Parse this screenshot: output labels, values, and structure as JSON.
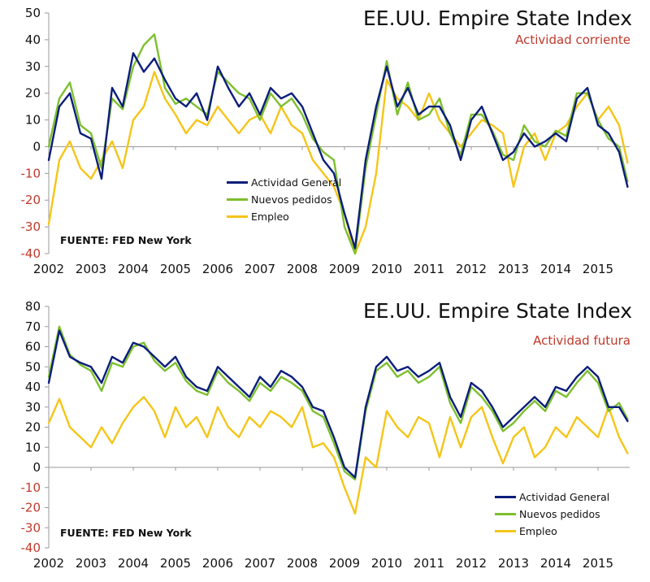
{
  "chart_data": [
    {
      "type": "line",
      "title": "EE.UU. Empire State Index",
      "subtitle": "Actividad corriente",
      "source": "FUENTE: FED New York",
      "xlabel": "",
      "ylabel": "",
      "ylim": [
        -40,
        50
      ],
      "yticks": [
        50,
        40,
        30,
        20,
        10,
        0,
        -10,
        -20,
        -30,
        -40
      ],
      "xlim": [
        2002,
        2015.75
      ],
      "xticks": [
        2002,
        2003,
        2004,
        2005,
        2006,
        2007,
        2008,
        2009,
        2010,
        2011,
        2012,
        2013,
        2014,
        2015
      ],
      "legend_placement": "bottom-left",
      "grid": false,
      "series": [
        {
          "name": "Actividad General",
          "color": "#0b1e7a",
          "x": [
            2002.0,
            2002.25,
            2002.5,
            2002.75,
            2003.0,
            2003.25,
            2003.5,
            2003.75,
            2004.0,
            2004.25,
            2004.5,
            2004.75,
            2005.0,
            2005.25,
            2005.5,
            2005.75,
            2006.0,
            2006.25,
            2006.5,
            2006.75,
            2007.0,
            2007.25,
            2007.5,
            2007.75,
            2008.0,
            2008.25,
            2008.5,
            2008.75,
            2009.0,
            2009.25,
            2009.5,
            2009.75,
            2010.0,
            2010.25,
            2010.5,
            2010.75,
            2011.0,
            2011.25,
            2011.5,
            2011.75,
            2012.0,
            2012.25,
            2012.5,
            2012.75,
            2013.0,
            2013.25,
            2013.5,
            2013.75,
            2014.0,
            2014.25,
            2014.5,
            2014.75,
            2015.0,
            2015.25,
            2015.5,
            2015.7
          ],
          "values": [
            -5,
            15,
            20,
            5,
            3,
            -12,
            22,
            15,
            35,
            28,
            33,
            25,
            18,
            15,
            20,
            10,
            30,
            22,
            15,
            20,
            12,
            22,
            18,
            20,
            15,
            5,
            -5,
            -10,
            -25,
            -38,
            -5,
            15,
            30,
            15,
            22,
            12,
            15,
            15,
            8,
            -5,
            10,
            15,
            5,
            -5,
            -2,
            5,
            0,
            2,
            5,
            2,
            18,
            22,
            8,
            5,
            -2,
            -15
          ]
        },
        {
          "name": "Nuevos pedidos",
          "color": "#7dbf2e",
          "x": [
            2002.0,
            2002.25,
            2002.5,
            2002.75,
            2003.0,
            2003.25,
            2003.5,
            2003.75,
            2004.0,
            2004.25,
            2004.5,
            2004.75,
            2005.0,
            2005.25,
            2005.5,
            2005.75,
            2006.0,
            2006.25,
            2006.5,
            2006.75,
            2007.0,
            2007.25,
            2007.5,
            2007.75,
            2008.0,
            2008.25,
            2008.5,
            2008.75,
            2009.0,
            2009.25,
            2009.5,
            2009.75,
            2010.0,
            2010.25,
            2010.5,
            2010.75,
            2011.0,
            2011.25,
            2011.5,
            2011.75,
            2012.0,
            2012.25,
            2012.5,
            2012.75,
            2013.0,
            2013.25,
            2013.5,
            2013.75,
            2014.0,
            2014.25,
            2014.5,
            2014.75,
            2015.0,
            2015.25,
            2015.5,
            2015.7
          ],
          "values": [
            0,
            18,
            24,
            8,
            5,
            -8,
            18,
            14,
            30,
            38,
            42,
            22,
            16,
            18,
            15,
            12,
            28,
            24,
            20,
            18,
            10,
            20,
            15,
            18,
            12,
            3,
            -2,
            -5,
            -30,
            -40,
            -8,
            12,
            32,
            12,
            24,
            10,
            12,
            18,
            5,
            -3,
            12,
            12,
            6,
            -3,
            -5,
            8,
            2,
            0,
            6,
            4,
            20,
            20,
            10,
            3,
            0,
            -13
          ]
        },
        {
          "name": "Empleo",
          "color": "#f5c518",
          "x": [
            2002.0,
            2002.25,
            2002.5,
            2002.75,
            2003.0,
            2003.25,
            2003.5,
            2003.75,
            2004.0,
            2004.25,
            2004.5,
            2004.75,
            2005.0,
            2005.25,
            2005.5,
            2005.75,
            2006.0,
            2006.25,
            2006.5,
            2006.75,
            2007.0,
            2007.25,
            2007.5,
            2007.75,
            2008.0,
            2008.25,
            2008.5,
            2008.75,
            2009.0,
            2009.25,
            2009.5,
            2009.75,
            2010.0,
            2010.25,
            2010.5,
            2010.75,
            2011.0,
            2011.25,
            2011.5,
            2011.75,
            2012.0,
            2012.25,
            2012.5,
            2012.75,
            2013.0,
            2013.25,
            2013.5,
            2013.75,
            2014.0,
            2014.25,
            2014.5,
            2014.75,
            2015.0,
            2015.25,
            2015.5,
            2015.7
          ],
          "values": [
            -29,
            -5,
            2,
            -8,
            -12,
            -5,
            2,
            -8,
            10,
            15,
            28,
            18,
            12,
            5,
            10,
            8,
            15,
            10,
            5,
            10,
            12,
            5,
            15,
            8,
            5,
            -5,
            -10,
            -15,
            -25,
            -40,
            -30,
            -10,
            25,
            18,
            15,
            10,
            20,
            10,
            5,
            0,
            5,
            10,
            8,
            5,
            -15,
            0,
            5,
            -5,
            5,
            8,
            15,
            20,
            10,
            15,
            8,
            -6
          ]
        }
      ]
    },
    {
      "type": "line",
      "title": "EE.UU. Empire State Index",
      "subtitle": "Actividad futura",
      "source": "FUENTE: FED New York",
      "xlabel": "",
      "ylabel": "",
      "ylim": [
        -40,
        80
      ],
      "yticks": [
        80,
        70,
        60,
        50,
        40,
        30,
        20,
        10,
        0,
        -10,
        -20,
        -30,
        -40
      ],
      "xlim": [
        2002,
        2015.75
      ],
      "xticks": [
        2002,
        2003,
        2004,
        2005,
        2006,
        2007,
        2008,
        2009,
        2010,
        2011,
        2012,
        2013,
        2014,
        2015
      ],
      "legend_placement": "bottom-right",
      "grid": false,
      "series": [
        {
          "name": "Actividad General",
          "color": "#0b1e7a",
          "x": [
            2002.0,
            2002.25,
            2002.5,
            2002.75,
            2003.0,
            2003.25,
            2003.5,
            2003.75,
            2004.0,
            2004.25,
            2004.5,
            2004.75,
            2005.0,
            2005.25,
            2005.5,
            2005.75,
            2006.0,
            2006.25,
            2006.5,
            2006.75,
            2007.0,
            2007.25,
            2007.5,
            2007.75,
            2008.0,
            2008.25,
            2008.5,
            2008.75,
            2009.0,
            2009.25,
            2009.5,
            2009.75,
            2010.0,
            2010.25,
            2010.5,
            2010.75,
            2011.0,
            2011.25,
            2011.5,
            2011.75,
            2012.0,
            2012.25,
            2012.5,
            2012.75,
            2013.0,
            2013.25,
            2013.5,
            2013.75,
            2014.0,
            2014.25,
            2014.5,
            2014.75,
            2015.0,
            2015.25,
            2015.5,
            2015.7
          ],
          "values": [
            42,
            68,
            55,
            52,
            50,
            42,
            55,
            52,
            62,
            60,
            55,
            50,
            55,
            45,
            40,
            38,
            50,
            45,
            40,
            35,
            45,
            40,
            48,
            45,
            40,
            30,
            28,
            15,
            0,
            -5,
            30,
            50,
            55,
            48,
            50,
            45,
            48,
            52,
            35,
            25,
            42,
            38,
            30,
            20,
            25,
            30,
            35,
            30,
            40,
            38,
            45,
            50,
            45,
            30,
            30,
            23
          ]
        },
        {
          "name": "Nuevos pedidos",
          "color": "#7dbf2e",
          "x": [
            2002.0,
            2002.25,
            2002.5,
            2002.75,
            2003.0,
            2003.25,
            2003.5,
            2003.75,
            2004.0,
            2004.25,
            2004.5,
            2004.75,
            2005.0,
            2005.25,
            2005.5,
            2005.75,
            2006.0,
            2006.25,
            2006.5,
            2006.75,
            2007.0,
            2007.25,
            2007.5,
            2007.75,
            2008.0,
            2008.25,
            2008.5,
            2008.75,
            2009.0,
            2009.25,
            2009.5,
            2009.75,
            2010.0,
            2010.25,
            2010.5,
            2010.75,
            2011.0,
            2011.25,
            2011.5,
            2011.75,
            2012.0,
            2012.25,
            2012.5,
            2012.75,
            2013.0,
            2013.25,
            2013.5,
            2013.75,
            2014.0,
            2014.25,
            2014.5,
            2014.75,
            2015.0,
            2015.25,
            2015.5,
            2015.7
          ],
          "values": [
            45,
            70,
            56,
            51,
            48,
            38,
            52,
            50,
            60,
            62,
            53,
            48,
            52,
            43,
            38,
            36,
            48,
            42,
            38,
            33,
            42,
            38,
            45,
            42,
            38,
            28,
            25,
            12,
            -2,
            -6,
            28,
            48,
            52,
            45,
            48,
            42,
            45,
            50,
            32,
            22,
            40,
            35,
            28,
            18,
            22,
            28,
            33,
            28,
            38,
            35,
            42,
            48,
            42,
            28,
            32,
            24
          ]
        },
        {
          "name": "Empleo",
          "color": "#f5c518",
          "x": [
            2002.0,
            2002.25,
            2002.5,
            2002.75,
            2003.0,
            2003.25,
            2003.5,
            2003.75,
            2004.0,
            2004.25,
            2004.5,
            2004.75,
            2005.0,
            2005.25,
            2005.5,
            2005.75,
            2006.0,
            2006.25,
            2006.5,
            2006.75,
            2007.0,
            2007.25,
            2007.5,
            2007.75,
            2008.0,
            2008.25,
            2008.5,
            2008.75,
            2009.0,
            2009.25,
            2009.5,
            2009.75,
            2010.0,
            2010.25,
            2010.5,
            2010.75,
            2011.0,
            2011.25,
            2011.5,
            2011.75,
            2012.0,
            2012.25,
            2012.5,
            2012.75,
            2013.0,
            2013.25,
            2013.5,
            2013.75,
            2014.0,
            2014.25,
            2014.5,
            2014.75,
            2015.0,
            2015.25,
            2015.5,
            2015.7
          ],
          "values": [
            22,
            34,
            20,
            15,
            10,
            20,
            12,
            22,
            30,
            35,
            28,
            15,
            30,
            20,
            25,
            15,
            30,
            20,
            15,
            25,
            20,
            28,
            25,
            20,
            30,
            10,
            12,
            5,
            -10,
            -23,
            5,
            0,
            28,
            20,
            15,
            25,
            22,
            5,
            25,
            10,
            25,
            30,
            15,
            2,
            15,
            20,
            5,
            10,
            20,
            15,
            25,
            20,
            15,
            30,
            15,
            7
          ]
        }
      ]
    }
  ]
}
